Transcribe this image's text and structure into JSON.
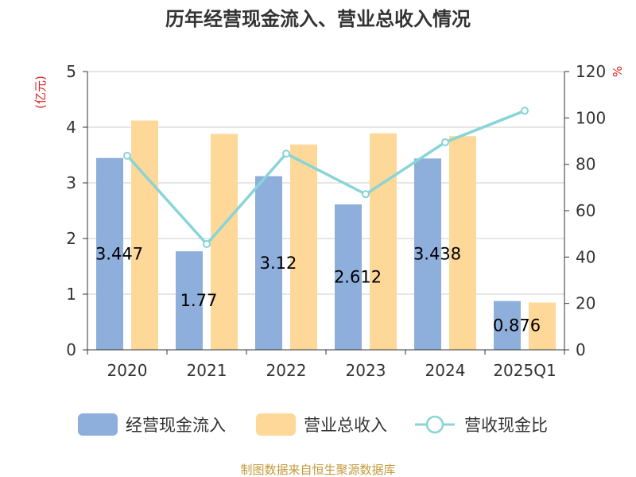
{
  "chart_data": {
    "type": "bar",
    "title": "历年经营现金流入、营业总收入情况",
    "categories": [
      "2020",
      "2021",
      "2022",
      "2023",
      "2024",
      "2025Q1"
    ],
    "y_left": {
      "unit": "(亿元)",
      "ticks": [
        "0",
        "1",
        "2",
        "3",
        "4",
        "5"
      ],
      "ylim": [
        0,
        5
      ]
    },
    "y_right": {
      "unit": "%",
      "ticks": [
        "0",
        "20",
        "40",
        "60",
        "80",
        "100",
        "120"
      ],
      "ylim": [
        0,
        120
      ]
    },
    "series": [
      {
        "name": "经营现金流入",
        "kind": "bar",
        "axis": "left",
        "color": "#8eaedb",
        "values": [
          3.447,
          1.77,
          3.12,
          2.612,
          3.438,
          0.876
        ],
        "labels": [
          "3.447",
          "1.77",
          "3.12",
          "2.612",
          "3.438",
          "0.876"
        ]
      },
      {
        "name": "营业总收入",
        "kind": "bar",
        "axis": "left",
        "color": "#fdd899",
        "values": [
          4.12,
          3.88,
          3.69,
          3.89,
          3.84,
          0.85
        ]
      },
      {
        "name": "营收现金比",
        "kind": "line",
        "axis": "right",
        "color": "#88d4d7",
        "values": [
          83.7,
          45.6,
          84.6,
          67.1,
          89.5,
          103.1
        ]
      }
    ],
    "grid": true,
    "legend": "bottom"
  },
  "source": {
    "text": "制图数据来自恒生聚源数据库",
    "color": "#c49a3c"
  },
  "colors": {
    "unit": "#e02020",
    "axis": "#333333",
    "grid": "#cccccc"
  }
}
